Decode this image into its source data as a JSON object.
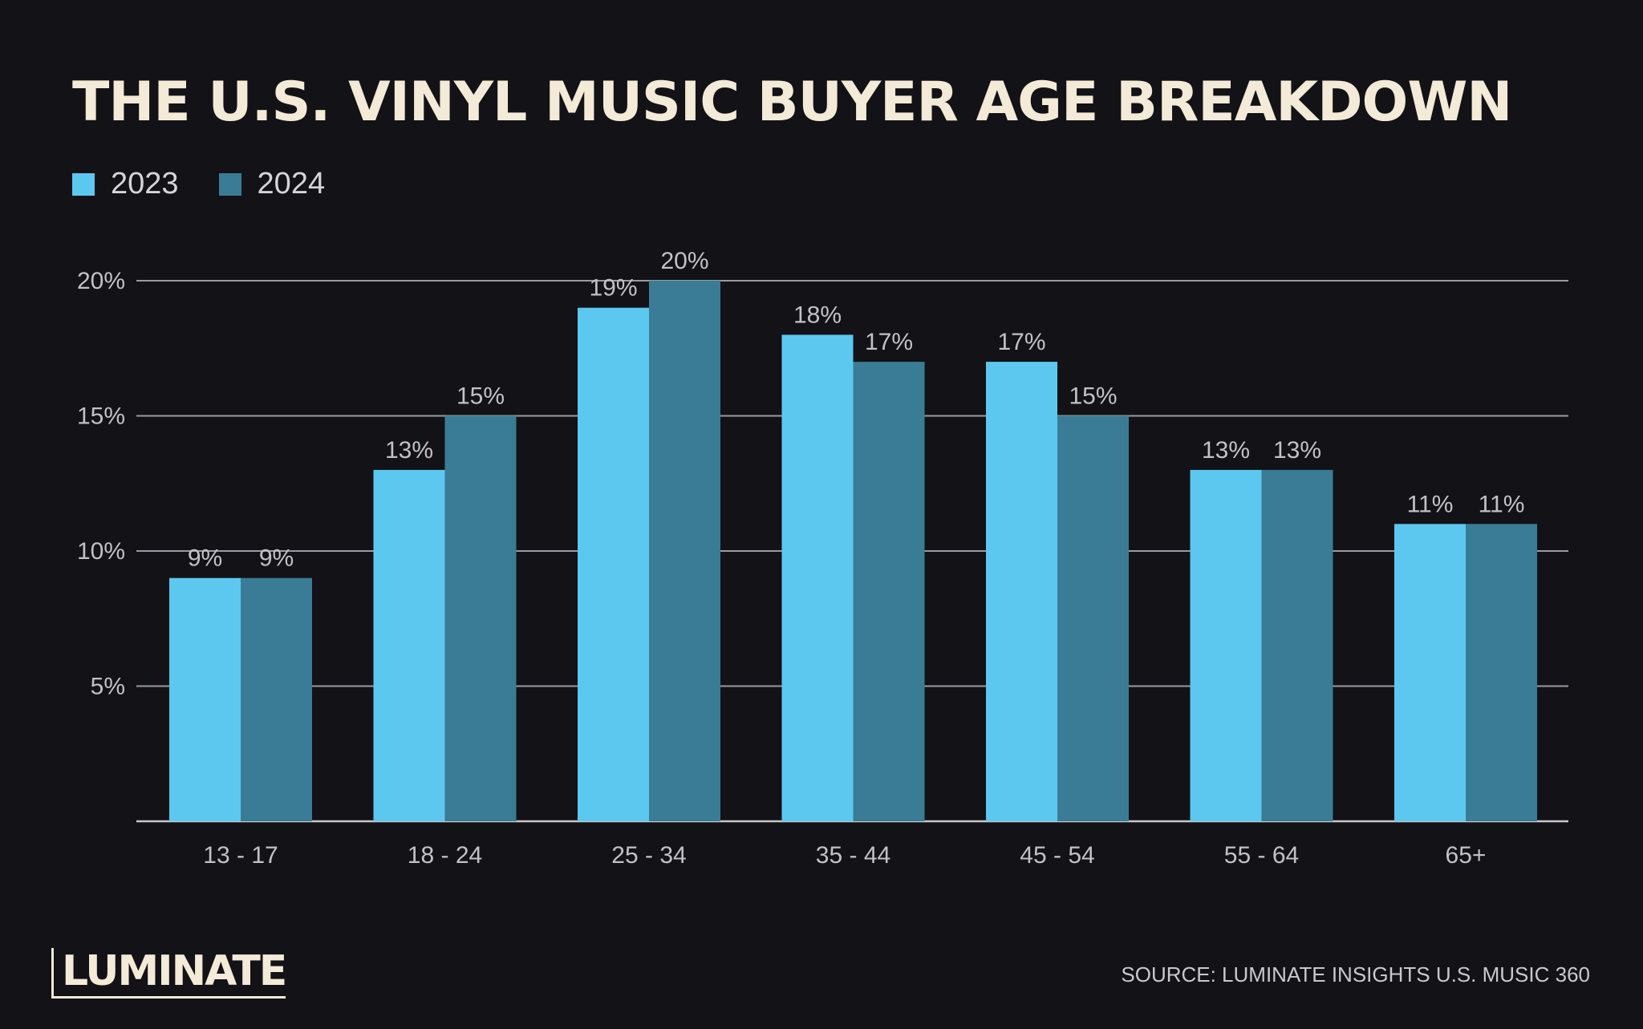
{
  "chart_data": {
    "type": "bar",
    "title": "THE U.S. VINYL MUSIC BUYER AGE BREAKDOWN",
    "categories": [
      "13 - 17",
      "18 - 24",
      "25 - 34",
      "35 - 44",
      "45 - 54",
      "55 - 64",
      "65+"
    ],
    "series": [
      {
        "name": "2023",
        "color": "#5cc8ef",
        "values": [
          9,
          13,
          19,
          18,
          17,
          13,
          11
        ],
        "labels": [
          "9%",
          "13%",
          "19%",
          "18%",
          "17%",
          "13%",
          "11%"
        ]
      },
      {
        "name": "2024",
        "color": "#3a7c95",
        "values": [
          9,
          15,
          20,
          17,
          15,
          13,
          11
        ],
        "labels": [
          "9%",
          "15%",
          "20%",
          "17%",
          "15%",
          "13%",
          "11%"
        ]
      }
    ],
    "ylim": [
      0,
      20
    ],
    "yticks": [
      {
        "value": 5,
        "label": "5%"
      },
      {
        "value": 10,
        "label": "10%"
      },
      {
        "value": 15,
        "label": "15%"
      },
      {
        "value": 20,
        "label": "20%"
      }
    ],
    "grid": true,
    "legend": "top-left"
  },
  "footer": {
    "logo_text": "LUMINATE",
    "source": "SOURCE: LUMINATE INSIGHTS U.S. MUSIC 360"
  },
  "colors": {
    "background": "#121217",
    "title": "#f3ead7",
    "gridline": "#9a9aa0"
  }
}
